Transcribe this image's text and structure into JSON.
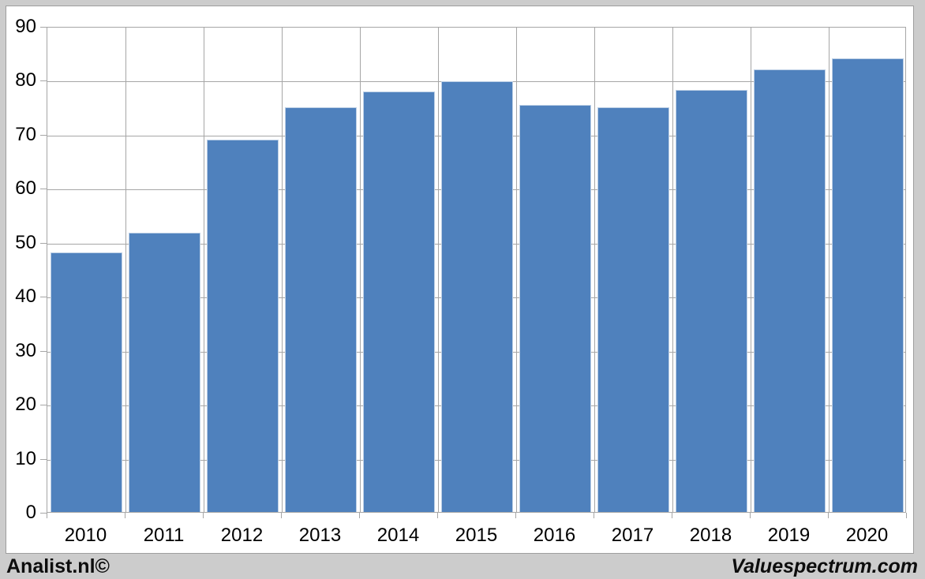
{
  "chart_data": {
    "type": "bar",
    "categories": [
      "2010",
      "2011",
      "2012",
      "2013",
      "2014",
      "2015",
      "2016",
      "2017",
      "2018",
      "2019",
      "2020"
    ],
    "values": [
      48,
      51.7,
      69,
      74.9,
      77.9,
      79.8,
      75.4,
      74.9,
      78.1,
      82,
      84
    ],
    "title": "",
    "xlabel": "",
    "ylabel": "",
    "ylim": [
      0,
      90
    ],
    "ytick_step": 10,
    "yticks": [
      0,
      10,
      20,
      30,
      40,
      50,
      60,
      70,
      80,
      90
    ],
    "grid": true,
    "legend_position": "none",
    "bar_color": "#4f81bd",
    "bar_border_color": "#bccfe5",
    "grid_color": "#a6a6a6",
    "plot_background": "#ffffff",
    "frame_background": "#cccccc"
  },
  "footer": {
    "left_text": "Analist.nl©",
    "right_text": "Valuespectrum.com"
  }
}
